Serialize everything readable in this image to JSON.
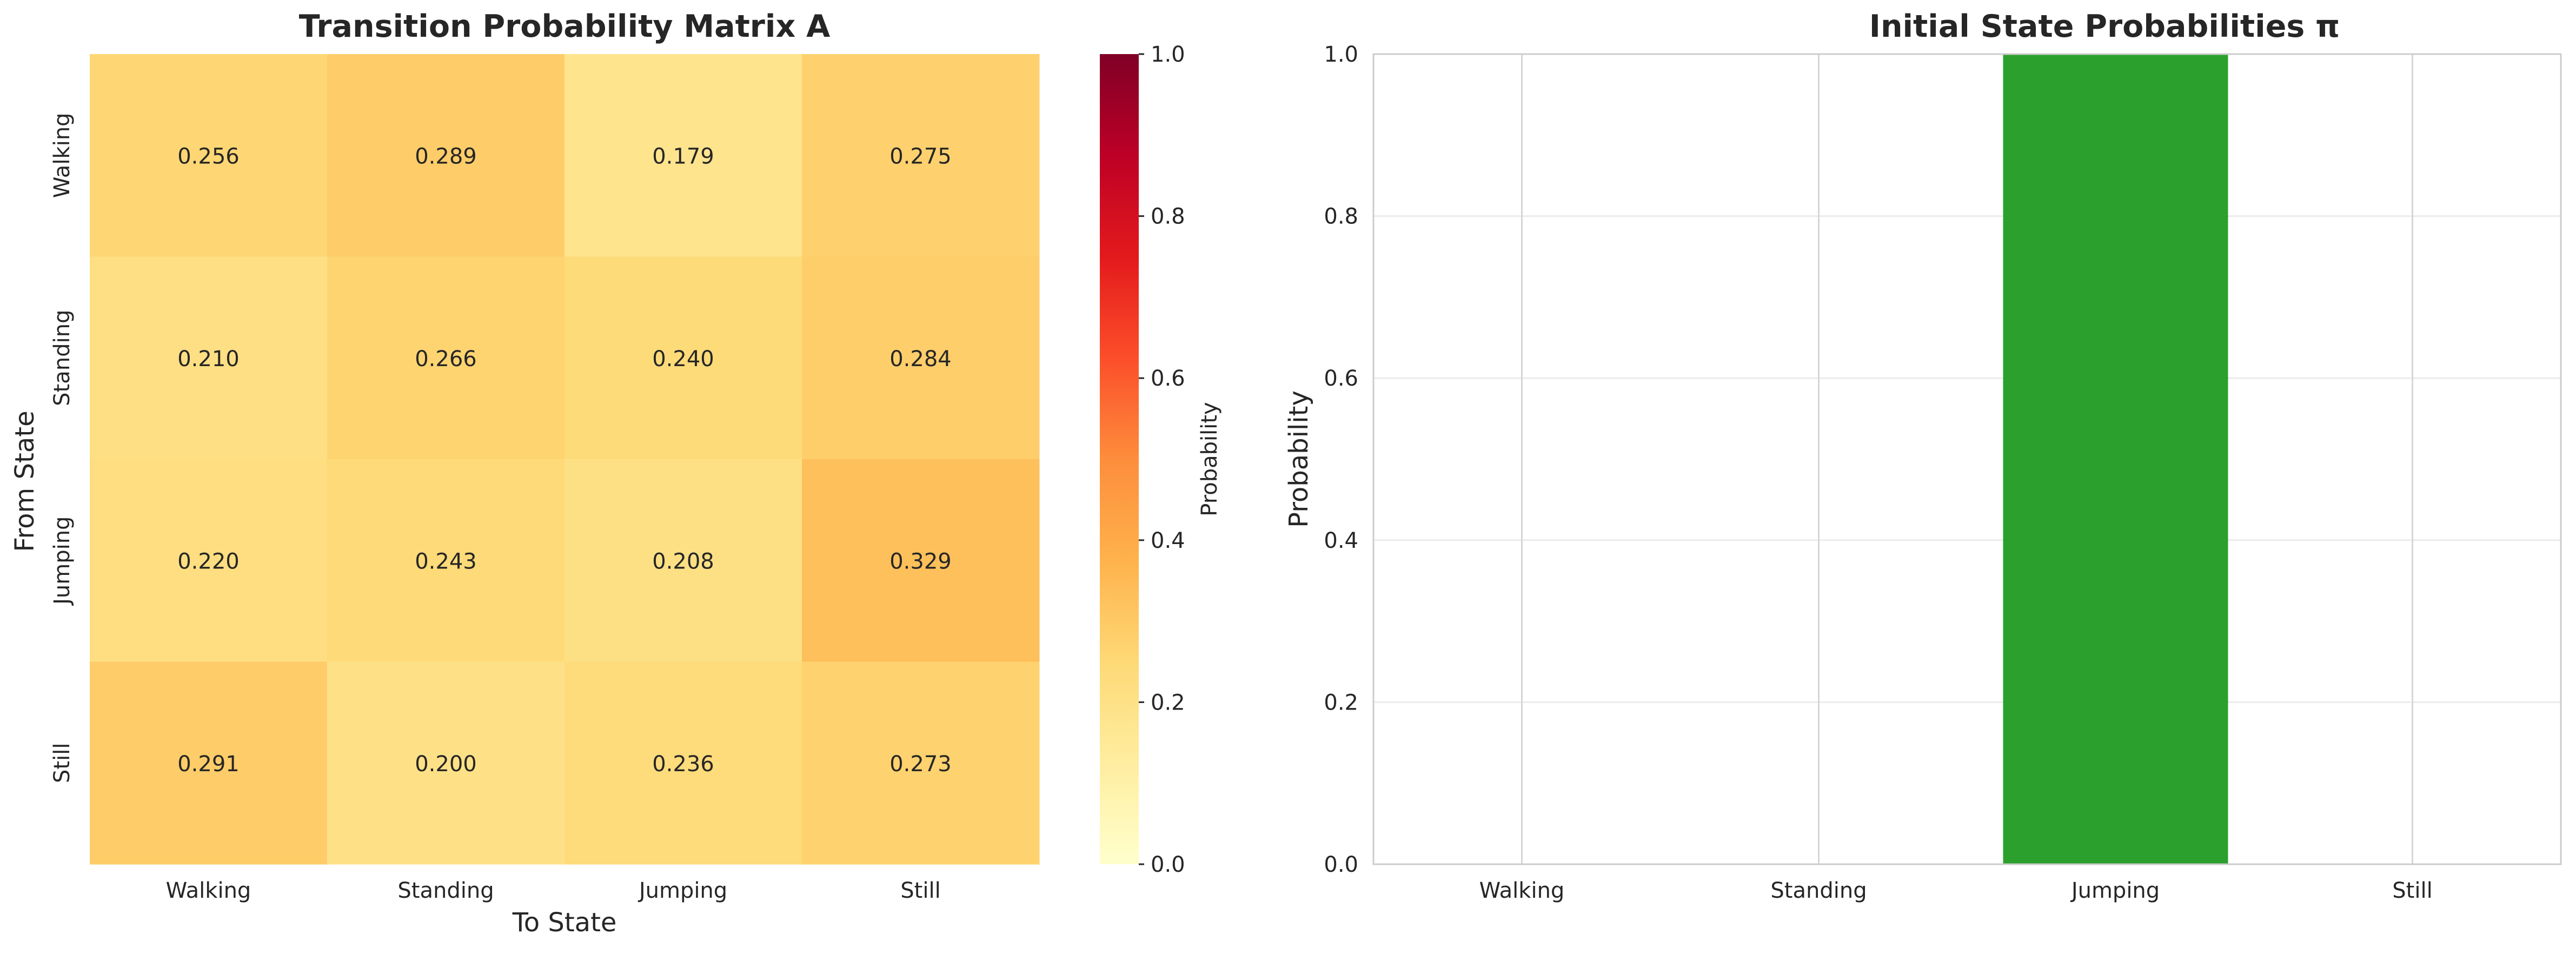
{
  "chart_data": [
    {
      "type": "heatmap",
      "title": "Transition Probability Matrix A",
      "xlabel": "To State",
      "ylabel": "From State",
      "x_categories": [
        "Walking",
        "Standing",
        "Jumping",
        "Still"
      ],
      "y_categories": [
        "Walking",
        "Standing",
        "Jumping",
        "Still"
      ],
      "values": [
        [
          0.256,
          0.289,
          0.179,
          0.275
        ],
        [
          0.21,
          0.266,
          0.24,
          0.284
        ],
        [
          0.22,
          0.243,
          0.208,
          0.329
        ],
        [
          0.291,
          0.2,
          0.236,
          0.273
        ]
      ],
      "value_labels": [
        [
          "0.256",
          "0.289",
          "0.179",
          "0.275"
        ],
        [
          "0.210",
          "0.266",
          "0.240",
          "0.284"
        ],
        [
          "0.220",
          "0.243",
          "0.208",
          "0.329"
        ],
        [
          "0.291",
          "0.200",
          "0.236",
          "0.273"
        ]
      ],
      "colorbar": {
        "label": "Probability",
        "range": [
          0,
          1
        ],
        "ticks": [
          "0.0",
          "0.2",
          "0.4",
          "0.6",
          "0.8",
          "1.0"
        ],
        "colormap": "YlOrRd",
        "colors": [
          "#ffffcc",
          "#ffeda0",
          "#fed976",
          "#feb24c",
          "#fd8d3c",
          "#fc4e2a",
          "#e31a1c",
          "#bd0026",
          "#800026"
        ]
      }
    },
    {
      "type": "bar",
      "title": "Initial State Probabilities π",
      "xlabel": "",
      "ylabel": "Probability",
      "categories": [
        "Walking",
        "Standing",
        "Jumping",
        "Still"
      ],
      "values": [
        0.0,
        0.0,
        1.0,
        0.0
      ],
      "ylim": [
        0,
        1
      ],
      "yticks": [
        "0.0",
        "0.2",
        "0.4",
        "0.6",
        "0.8",
        "1.0"
      ],
      "bar_color": "#2ca02c",
      "grid": true
    }
  ]
}
